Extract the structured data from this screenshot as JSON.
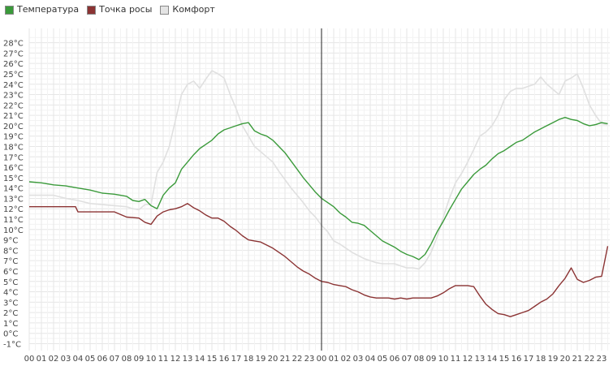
{
  "legend": {
    "items": [
      {
        "label": "Температура",
        "color": "#3a9a3a"
      },
      {
        "label": "Точка росы",
        "color": "#8b3333"
      },
      {
        "label": "Комфорт",
        "color": "#e0e0e0"
      }
    ]
  },
  "chart_data": {
    "type": "line",
    "x_unit": "hours over two days (0–48)",
    "x_tick_labels": [
      "00",
      "01",
      "02",
      "03",
      "04",
      "05",
      "06",
      "07",
      "08",
      "09",
      "10",
      "11",
      "12",
      "13",
      "14",
      "15",
      "16",
      "17",
      "18",
      "19",
      "20",
      "21",
      "22",
      "23",
      "00",
      "01",
      "02",
      "03",
      "04",
      "05",
      "06",
      "07",
      "08",
      "09",
      "10",
      "11",
      "12",
      "13",
      "14",
      "15",
      "16",
      "17",
      "18",
      "19",
      "20",
      "21",
      "22",
      "23"
    ],
    "y_tick_labels": [
      "28°C",
      "27°C",
      "26°C",
      "25°C",
      "24°C",
      "23°C",
      "22°C",
      "21°C",
      "20°C",
      "19°C",
      "18°C",
      "17°C",
      "16°C",
      "15°C",
      "14°C",
      "13°C",
      "12°C",
      "11°C",
      "10°C",
      "9°C",
      "8°C",
      "7°C",
      "6°C",
      "5°C",
      "4°C",
      "3°C",
      "2°C",
      "1°C",
      "0°C",
      "-1°C"
    ],
    "ylim": [
      -1,
      28
    ],
    "xlim": [
      0,
      48
    ],
    "grid": true,
    "legend_position": "top-left",
    "marker_line_x": 24,
    "series": [
      {
        "name": "Температура",
        "color": "#3a9a3a",
        "x": [
          0,
          1,
          2,
          3,
          4,
          5,
          6,
          7,
          8,
          8.5,
          9,
          9.5,
          10,
          10.5,
          11,
          11.5,
          12,
          12.5,
          13,
          13.5,
          14,
          14.5,
          15,
          15.5,
          16,
          16.5,
          17,
          17.5,
          18,
          18.5,
          19,
          19.5,
          20,
          20.5,
          21,
          21.5,
          22,
          22.5,
          23,
          23.5,
          24,
          24.5,
          25,
          25.5,
          26,
          26.5,
          27,
          27.5,
          28,
          28.5,
          29,
          29.5,
          30,
          30.5,
          31,
          31.5,
          32,
          32.5,
          33,
          33.5,
          34,
          34.5,
          35,
          35.5,
          36,
          36.5,
          37,
          37.5,
          38,
          38.5,
          39,
          39.5,
          40,
          40.5,
          41,
          41.5,
          42,
          42.5,
          43,
          43.5,
          44,
          44.5,
          45,
          45.5,
          46,
          46.5,
          47,
          47.5
        ],
        "values": [
          14.6,
          14.5,
          14.3,
          14.2,
          14.0,
          13.8,
          13.5,
          13.4,
          13.2,
          12.8,
          12.7,
          12.9,
          12.3,
          12.0,
          13.3,
          14.0,
          14.5,
          15.8,
          16.5,
          17.2,
          17.8,
          18.2,
          18.6,
          19.2,
          19.6,
          19.8,
          20.0,
          20.2,
          20.3,
          19.5,
          19.2,
          19.0,
          18.6,
          18.0,
          17.4,
          16.6,
          15.8,
          15.0,
          14.3,
          13.6,
          13.0,
          12.6,
          12.2,
          11.6,
          11.2,
          10.7,
          10.6,
          10.4,
          9.9,
          9.4,
          8.9,
          8.6,
          8.3,
          7.9,
          7.6,
          7.4,
          7.1,
          7.6,
          8.6,
          9.8,
          10.8,
          11.9,
          12.9,
          13.9,
          14.6,
          15.3,
          15.8,
          16.2,
          16.8,
          17.3,
          17.6,
          18.0,
          18.4,
          18.6,
          19.0,
          19.4,
          19.7,
          20.0,
          20.3,
          20.6,
          20.8,
          20.6,
          20.5,
          20.2,
          20.0,
          20.1,
          20.3,
          20.2
        ]
      },
      {
        "name": "Точка росы",
        "color": "#8b3333",
        "x": [
          0,
          1,
          2,
          3,
          3.8,
          4,
          5,
          6,
          7,
          8,
          9,
          9.5,
          10,
          10.5,
          11,
          11.5,
          12,
          12.5,
          13,
          13.5,
          14,
          14.5,
          15,
          15.5,
          16,
          16.5,
          17,
          17.5,
          18,
          18.5,
          19,
          19.5,
          20,
          20.5,
          21,
          21.5,
          22,
          22.5,
          23,
          23.5,
          24,
          24.5,
          25,
          25.5,
          26,
          26.5,
          27,
          27.5,
          28,
          28.5,
          29,
          29.5,
          30,
          30.5,
          31,
          31.5,
          32,
          32.5,
          33,
          33.5,
          34,
          34.5,
          35,
          35.5,
          36,
          36.5,
          37,
          37.5,
          38,
          38.5,
          39,
          39.5,
          40,
          40.5,
          41,
          41.5,
          42,
          42.5,
          43,
          43.5,
          44,
          44.5,
          45,
          45.5,
          46,
          46.5,
          47,
          47.5
        ],
        "values": [
          12.2,
          12.2,
          12.2,
          12.2,
          12.2,
          11.7,
          11.7,
          11.7,
          11.7,
          11.2,
          11.1,
          10.7,
          10.5,
          11.3,
          11.7,
          11.9,
          12.0,
          12.2,
          12.5,
          12.1,
          11.8,
          11.4,
          11.1,
          11.1,
          10.8,
          10.3,
          9.9,
          9.4,
          9.0,
          8.9,
          8.8,
          8.5,
          8.2,
          7.8,
          7.4,
          6.9,
          6.4,
          6.0,
          5.7,
          5.3,
          5.0,
          4.9,
          4.7,
          4.6,
          4.5,
          4.2,
          4.0,
          3.7,
          3.5,
          3.4,
          3.4,
          3.4,
          3.3,
          3.4,
          3.3,
          3.4,
          3.4,
          3.4,
          3.4,
          3.6,
          3.9,
          4.3,
          4.6,
          4.6,
          4.6,
          4.5,
          3.6,
          2.8,
          2.3,
          1.9,
          1.8,
          1.6,
          1.8,
          2.0,
          2.2,
          2.6,
          3.0,
          3.3,
          3.8,
          4.6,
          5.3,
          6.3,
          5.2,
          4.9,
          5.1,
          5.4,
          5.5,
          8.4
        ]
      },
      {
        "name": "Комфорт",
        "color": "#e0e0e0",
        "x": [
          0,
          1,
          2,
          3,
          4,
          5,
          6,
          7,
          8,
          8.5,
          9,
          9.5,
          10,
          10.5,
          11,
          11.5,
          12,
          12.5,
          13,
          13.5,
          14,
          14.5,
          15,
          15.5,
          16,
          16.5,
          17,
          17.5,
          18,
          18.5,
          19,
          19.5,
          20,
          20.5,
          21,
          21.5,
          22,
          22.5,
          23,
          23.5,
          24,
          24.5,
          25,
          25.5,
          26,
          26.5,
          27,
          27.5,
          28,
          28.5,
          29,
          29.5,
          30,
          30.5,
          31,
          31.5,
          32,
          32.5,
          33,
          33.5,
          34,
          34.5,
          35,
          35.5,
          36,
          36.5,
          37,
          37.5,
          38,
          38.5,
          39,
          39.5,
          40,
          40.5,
          41,
          41.5,
          42,
          42.5,
          43,
          43.5,
          44,
          44.5,
          45,
          45.5,
          46,
          46.5,
          47,
          47.5
        ],
        "values": [
          13.3,
          13.3,
          13.3,
          13.0,
          12.8,
          12.5,
          12.4,
          12.3,
          12.2,
          12.0,
          11.9,
          12.4,
          12.4,
          15.5,
          16.5,
          18.0,
          20.5,
          23.0,
          24.0,
          24.3,
          23.6,
          24.5,
          25.3,
          25.0,
          24.6,
          23.0,
          21.6,
          20.0,
          19.0,
          18.0,
          17.5,
          17.0,
          16.5,
          15.6,
          14.8,
          14.0,
          13.3,
          12.6,
          11.8,
          11.2,
          10.4,
          9.8,
          8.9,
          8.6,
          8.2,
          7.8,
          7.5,
          7.2,
          7.0,
          6.8,
          6.7,
          6.7,
          6.7,
          6.5,
          6.3,
          6.3,
          6.2,
          6.8,
          7.8,
          9.3,
          11.2,
          13.0,
          14.5,
          15.4,
          16.5,
          17.7,
          19.0,
          19.4,
          20.0,
          21.0,
          22.5,
          23.3,
          23.6,
          23.6,
          23.8,
          24.0,
          24.7,
          24.0,
          23.5,
          23.0,
          24.3,
          24.6,
          25.0,
          23.6,
          22.0,
          21.0,
          20.2,
          20.1
        ]
      }
    ]
  }
}
